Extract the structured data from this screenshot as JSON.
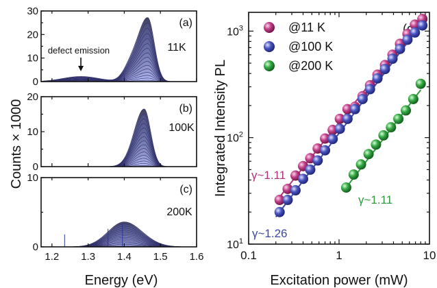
{
  "figure": {
    "left_ylabel": "Counts × 1000",
    "left_xlabel": "Energy (eV)"
  },
  "chart_data": [
    {
      "type": "area",
      "panel_label": "(a)",
      "temperature_label": "11K",
      "annotation": "defect emission",
      "xlabel": "",
      "ylabel": "",
      "xlim": [
        1.17,
        1.6
      ],
      "ylim": [
        0,
        30
      ],
      "xticks": [
        1.2,
        1.3,
        1.4,
        1.5,
        1.6
      ],
      "yticks": [
        0,
        10,
        20,
        30
      ],
      "peak_energy": 1.465,
      "max_peak_counts": 27,
      "defect_band_center": 1.28,
      "defect_band_max_counts": 2.2,
      "num_power_spectra": 16,
      "colors": {
        "fill_top": "#3f3f5f",
        "fill_bottom": "#b7bce6",
        "line": "#30306a"
      }
    },
    {
      "type": "area",
      "panel_label": "(b)",
      "temperature_label": "100K",
      "xlabel": "",
      "ylabel": "",
      "xlim": [
        1.17,
        1.6
      ],
      "ylim": [
        0,
        20
      ],
      "xticks": [
        1.2,
        1.3,
        1.4,
        1.5,
        1.6
      ],
      "yticks": [
        0,
        10,
        20
      ],
      "peak_energy": 1.455,
      "max_peak_counts": 16.5,
      "num_power_spectra": 16,
      "colors": {
        "fill_top": "#3f3f5f",
        "fill_bottom": "#b7bce6",
        "line": "#30306a"
      }
    },
    {
      "type": "area",
      "panel_label": "(c)",
      "temperature_label": "200K",
      "xlabel": "Energy (eV)",
      "ylabel": "",
      "xlim": [
        1.17,
        1.6
      ],
      "ylim": [
        0,
        10
      ],
      "xticks": [
        1.2,
        1.3,
        1.4,
        1.5,
        1.6
      ],
      "xticklabels": [
        "1.2",
        "1.3",
        "1.4",
        "1.5",
        "1.6"
      ],
      "yticks": [
        0,
        10
      ],
      "peak_energy": 1.4,
      "max_peak_counts": 3.6,
      "num_power_spectra": 16,
      "colors": {
        "fill_top": "#3f3f5f",
        "fill_bottom": "#b7bce6",
        "line": "#30306a"
      }
    },
    {
      "type": "scatter",
      "panel_label": "(d)",
      "xlabel": "Excitation power (mW)",
      "ylabel": "Integrated Intensity PL",
      "xscale": "log",
      "yscale": "log",
      "xlim": [
        0.1,
        10
      ],
      "ylim": [
        10,
        1500
      ],
      "xticks": [
        0.1,
        1,
        10
      ],
      "xticklabels": [
        "0.1",
        "1",
        "10"
      ],
      "yticks": [
        10,
        100,
        1000
      ],
      "yticklabels_base": "10",
      "yticklabels_exp": [
        "1",
        "2",
        "3"
      ],
      "legend_position": "top-left",
      "series": [
        {
          "name": "@11 K",
          "color": "#b0307a",
          "x": [
            0.22,
            0.27,
            0.33,
            0.4,
            0.48,
            0.58,
            0.7,
            0.85,
            1.02,
            1.24,
            1.5,
            1.82,
            2.2,
            2.66,
            3.22,
            3.9,
            4.72,
            5.71,
            6.9,
            8.35
          ],
          "y": [
            26,
            33,
            44,
            54,
            64,
            79,
            98,
            118,
            150,
            185,
            195,
            245,
            310,
            390,
            480,
            600,
            760,
            940,
            1150,
            1300
          ],
          "fit_label": "γ~1.11",
          "fit_x": [
            0.2,
            8.5
          ],
          "fit_y": [
            25,
            1365
          ]
        },
        {
          "name": "@100 K",
          "color": "#3a45a8",
          "x": [
            0.22,
            0.27,
            0.33,
            0.4,
            0.48,
            0.58,
            0.7,
            0.85,
            1.02,
            1.24,
            1.5,
            1.82,
            2.2,
            2.66,
            3.22,
            3.9,
            4.72,
            5.71,
            6.9,
            8.35
          ],
          "y": [
            20,
            26,
            32,
            41,
            50,
            61,
            76,
            97,
            121,
            150,
            185,
            230,
            285,
            360,
            440,
            550,
            680,
            830,
            970,
            1130
          ],
          "fit_label": "γ~1.26",
          "fit_x": [
            0.2,
            8.5
          ],
          "fit_y": [
            18,
            1220
          ]
        },
        {
          "name": "@200 K",
          "color": "#2e9a3c",
          "x": [
            1.2,
            1.45,
            1.75,
            2.12,
            2.56,
            3.1,
            3.75,
            4.53,
            5.48,
            6.62,
            8.0
          ],
          "y": [
            34,
            45,
            56,
            70,
            86,
            105,
            125,
            150,
            180,
            230,
            320
          ],
          "fit_label": "γ~1.11",
          "fit_x": [
            1.2,
            8.0
          ],
          "fit_y": [
            34,
            280
          ]
        }
      ]
    }
  ]
}
